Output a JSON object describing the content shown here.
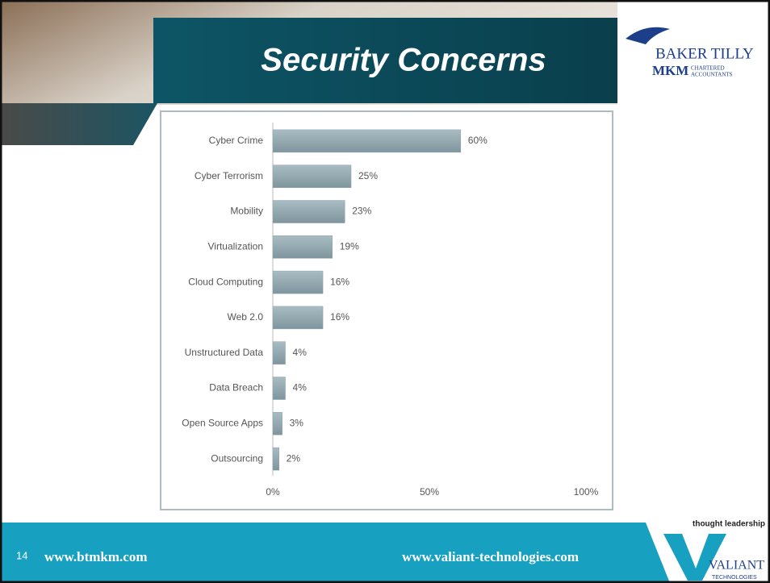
{
  "chart_data": {
    "type": "bar",
    "orientation": "horizontal",
    "title": "Security Concerns",
    "categories": [
      "Cyber Crime",
      "Cyber Terrorism",
      "Mobility",
      "Virtualization",
      "Cloud Computing",
      "Web 2.0",
      "Unstructured Data",
      "Data Breach",
      "Open Source Apps",
      "Outsourcing"
    ],
    "values": [
      60,
      25,
      23,
      19,
      16,
      16,
      4,
      4,
      3,
      2
    ],
    "value_labels": [
      "60%",
      "25%",
      "23%",
      "19%",
      "16%",
      "16%",
      "4%",
      "4%",
      "3%",
      "2%"
    ],
    "color": "#8ea3ab",
    "xlim": [
      0,
      100
    ],
    "xticks": [
      {
        "value": 0,
        "label": "0%"
      },
      {
        "value": 50,
        "label": "50%"
      },
      {
        "value": 100,
        "label": "100%"
      }
    ],
    "grid": false
  },
  "header": {
    "logo_line1": "BAKER TILLY",
    "logo_line2": "MKM",
    "logo_small1": "CHARTERED",
    "logo_small2": "ACCOUNTANTS"
  },
  "footer": {
    "slide_number": "14",
    "left_url": "www.btmkm.com",
    "right_url": "www.valiant-technologies.com",
    "tagline": "thought leadership .",
    "brand": "VALIANT",
    "brand_sub": "TECHNOLOGIES"
  }
}
